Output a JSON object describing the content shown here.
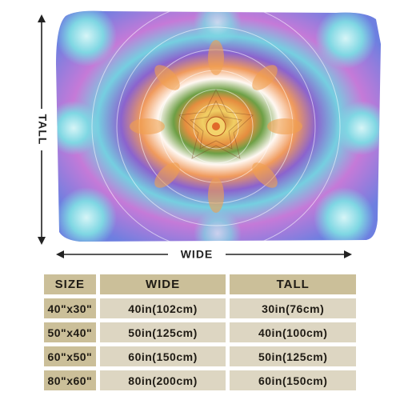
{
  "dimension_labels": {
    "height": "TALL",
    "width": "WIDE"
  },
  "artwork": {
    "description_icon": "mandala-blanket-illustration",
    "colors": [
      "#f3d36b",
      "#f08a3c",
      "#8e6bd1",
      "#6fd0de",
      "#ffffff"
    ]
  },
  "size_table": {
    "headers": {
      "size": "SIZE",
      "wide": "WIDE",
      "tall": "TALL"
    },
    "rows": [
      {
        "size": "40\"x30\"",
        "wide": "40in(102cm)",
        "tall": "30in(76cm)"
      },
      {
        "size": "50\"x40\"",
        "wide": "50in(125cm)",
        "tall": "40in(100cm)"
      },
      {
        "size": "60\"x50\"",
        "wide": "60in(150cm)",
        "tall": "50in(125cm)"
      },
      {
        "size": "80\"x60\"",
        "wide": "80in(200cm)",
        "tall": "60in(150cm)"
      }
    ]
  }
}
